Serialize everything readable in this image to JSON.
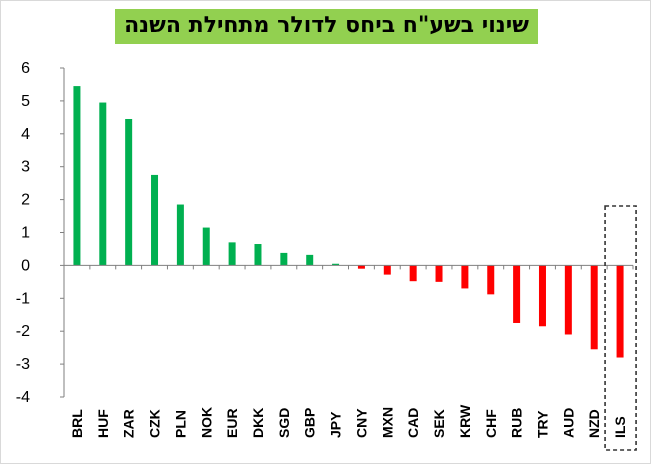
{
  "chart_data": {
    "type": "bar",
    "title": "שינוי בשע\"ח ביחס לדולר מתחילת השנה",
    "title_bg": "#92d050",
    "categories": [
      "BRL",
      "HUF",
      "ZAR",
      "CZK",
      "PLN",
      "NOK",
      "EUR",
      "DKK",
      "SGD",
      "GBP",
      "JPY",
      "CNY",
      "MXN",
      "CAD",
      "SEK",
      "KRW",
      "CHF",
      "RUB",
      "TRY",
      "AUD",
      "NZD",
      "ILS"
    ],
    "values": [
      5.45,
      4.95,
      4.45,
      2.75,
      1.85,
      1.15,
      0.7,
      0.65,
      0.38,
      0.32,
      0.05,
      -0.1,
      -0.28,
      -0.48,
      -0.5,
      -0.7,
      -0.88,
      -1.75,
      -1.85,
      -2.1,
      -2.55,
      -2.8
    ],
    "ylim": [
      -4,
      6
    ],
    "yticks": [
      6,
      5,
      4,
      3,
      2,
      1,
      0,
      -1,
      -2,
      -3,
      -4
    ],
    "positive_color": "#00b050",
    "negative_color": "#ff0000",
    "highlight": "ILS",
    "grid": false,
    "legend": "none"
  }
}
